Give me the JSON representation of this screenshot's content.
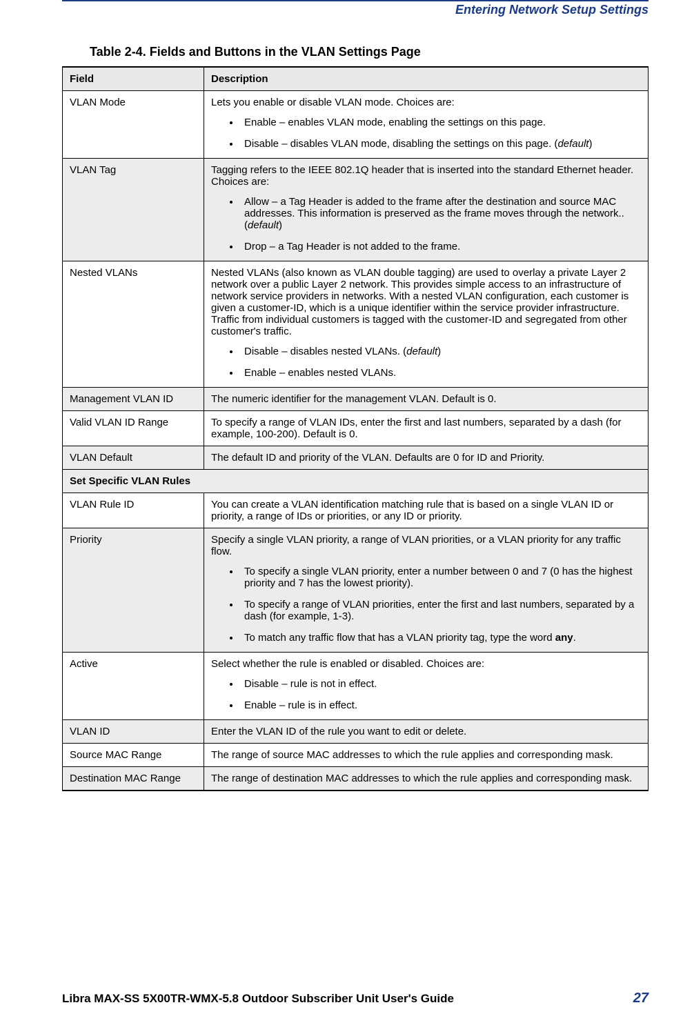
{
  "header": {
    "section_title": "Entering Network Setup Settings"
  },
  "caption": "Table 2-4. Fields and Buttons in the VLAN Settings Page",
  "columns": {
    "field": "Field",
    "description": "Description"
  },
  "section_header": "Set Specific VLAN Rules",
  "rows": {
    "vlan_mode": {
      "field": "VLAN Mode",
      "intro": "Lets you enable or disable VLAN mode. Choices are:",
      "b1a": "Enable – enables VLAN mode, enabling the settings on this page.",
      "b2a": "Disable – disables VLAN mode, disabling the settings on this page. (",
      "b2b": "default",
      "b2c": ")"
    },
    "vlan_tag": {
      "field": "VLAN Tag",
      "intro": "Tagging refers to the IEEE 802.1Q header that is inserted into the standard Ethernet header. Choices are:",
      "b1a": "Allow – a Tag Header is added to the frame after the destination and source MAC addresses. This information is preserved as the frame moves through the network.. (",
      "b1b": "default",
      "b1c": ")",
      "b2a": "Drop – a Tag Header is not added to the frame."
    },
    "nested": {
      "field": "Nested VLANs",
      "intro": "Nested VLANs (also known as VLAN double tagging) are used to overlay a private Layer 2 network over a public Layer 2 network. This provides simple access to an infrastructure of network service providers in networks. With a nested VLAN configuration, each customer is given a customer-ID, which is a unique identifier within the service provider infrastructure. Traffic from individual customers is tagged with the customer-ID and segregated from other customer's traffic.",
      "b1a": "Disable – disables nested VLANs. (",
      "b1b": "default",
      "b1c": ")",
      "b2a": "Enable – enables nested VLANs."
    },
    "mgmt_id": {
      "field": "Management VLAN ID",
      "desc": "The numeric identifier for the management VLAN. Default is 0."
    },
    "valid_range": {
      "field": "Valid VLAN ID Range",
      "desc": "To specify a range of VLAN IDs, enter the first and last numbers, separated by a dash (for example, 100-200). Default is 0."
    },
    "vlan_default": {
      "field": "VLAN Default",
      "desc": "The default ID and priority of the VLAN. Defaults are 0 for ID and Priority."
    },
    "rule_id": {
      "field": "VLAN Rule ID",
      "desc": "You can create a VLAN identification matching rule that is based on a single VLAN ID or priority, a range of IDs or priorities, or any ID or priority."
    },
    "priority": {
      "field": "Priority",
      "intro": "Specify a single VLAN priority, a range of VLAN priorities, or a VLAN priority for any traffic flow.",
      "b1": "To specify a single VLAN priority, enter a number between 0 and 7 (0 has the highest priority and 7 has the lowest priority).",
      "b2": "To specify a range of VLAN priorities, enter the first and last numbers, separated by a dash (for example, 1-3).",
      "b3a": "To match any traffic flow that has a VLAN priority tag, type the word ",
      "b3b": "any",
      "b3c": "."
    },
    "active": {
      "field": "Active",
      "intro": "Select whether the rule is enabled or disabled. Choices are:",
      "b1": "Disable – rule is not in effect.",
      "b2": "Enable – rule is in effect."
    },
    "vlan_id": {
      "field": "VLAN ID",
      "desc": "Enter the VLAN ID of the rule you want to edit or delete."
    },
    "src_mac": {
      "field": "Source MAC Range",
      "desc": "The range of source MAC addresses to which the rule applies and corresponding mask."
    },
    "dst_mac": {
      "field": "Destination MAC Range",
      "desc": "The range of destination MAC addresses to which the rule applies and corresponding mask."
    }
  },
  "footer": {
    "guide": "Libra MAX-SS  5X00TR-WMX-5.8 Outdoor Subscriber Unit User's Guide",
    "page": "27"
  }
}
